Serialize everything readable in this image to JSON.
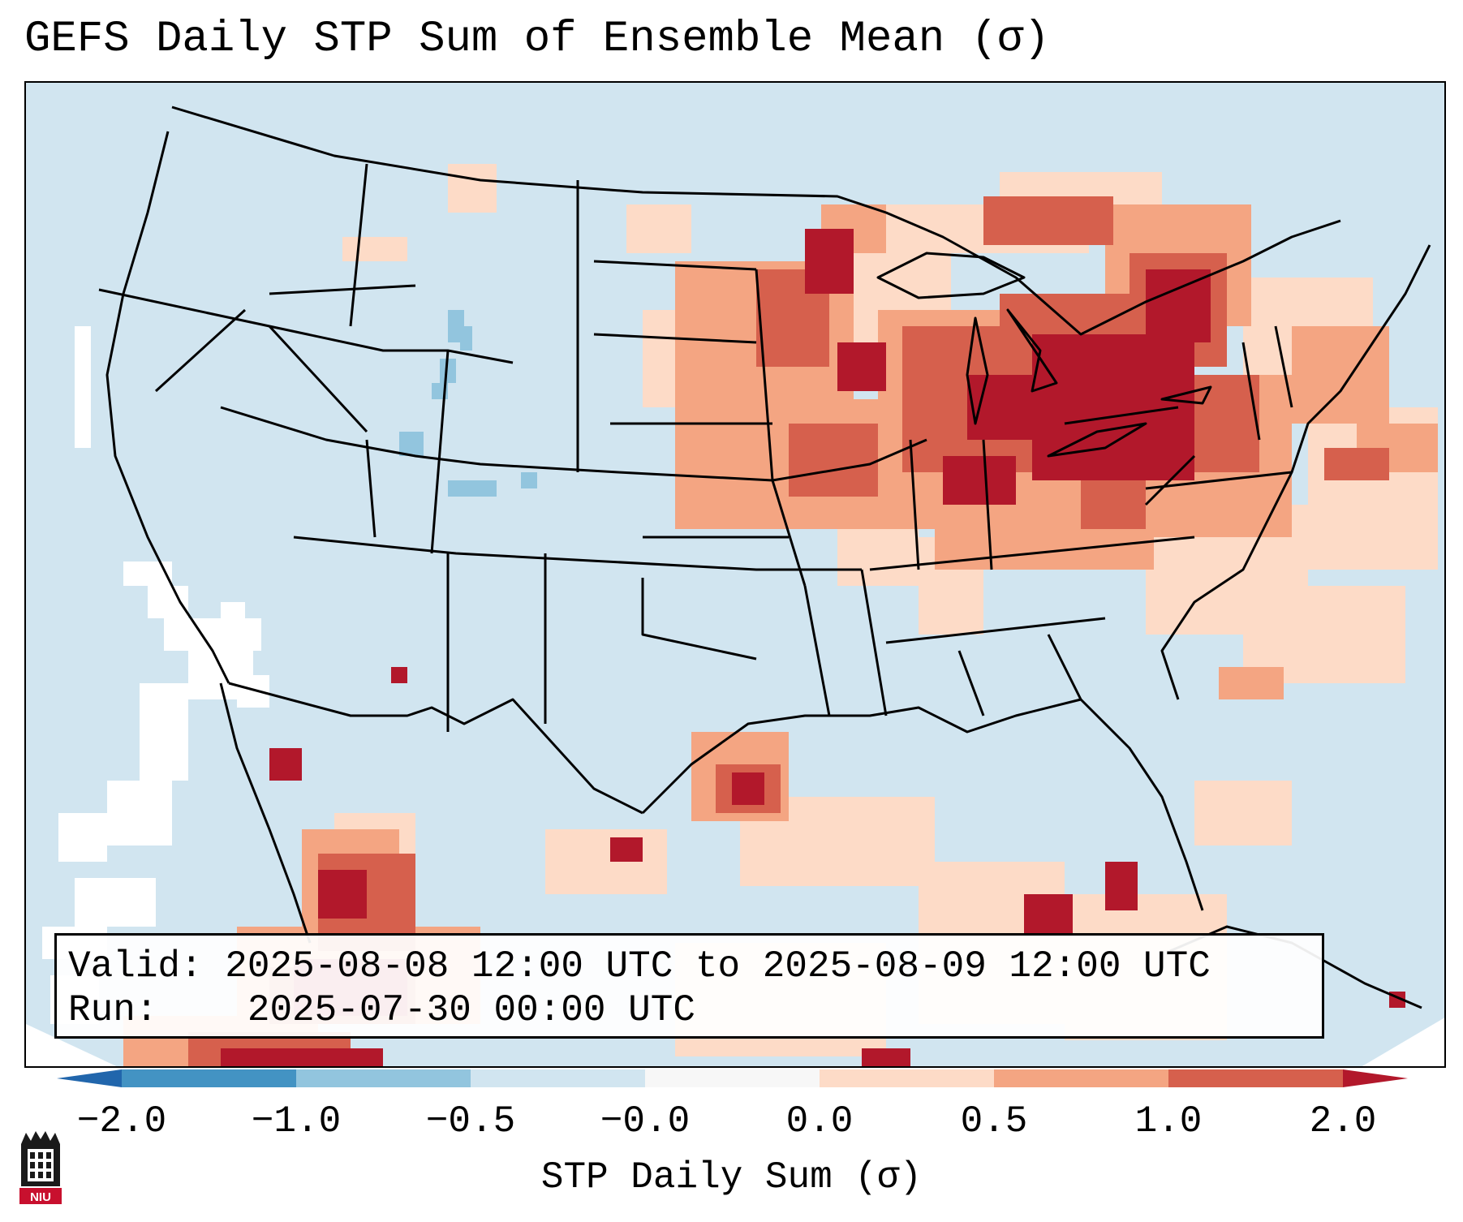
{
  "title": "GEFS Daily STP Sum of Ensemble Mean (σ)",
  "info": {
    "valid_label": "Valid:",
    "valid_value": "2025-08-08 12:00 UTC to 2025-08-09 12:00 UTC",
    "run_label": "Run:",
    "run_value": "2025-07-30 00:00 UTC"
  },
  "colorbar": {
    "label": "STP Daily Sum (σ)",
    "ticks": [
      "−2.0",
      "−1.0",
      "−0.5",
      "−0.0",
      "0.0",
      "0.5",
      "1.0",
      "2.0"
    ],
    "colors": [
      "#4393c3",
      "#92c5de",
      "#d1e5f0",
      "#f7f7f7",
      "#fddbc7",
      "#f4a582",
      "#d6604d",
      "#b2182b"
    ],
    "extend_low_color": "#2166ac",
    "extend_high_color": "#b2182b"
  },
  "logo": {
    "text": "NIU"
  },
  "map": {
    "background_color": "#d1e5f0",
    "region": "Continental United States with southern Canada, Mexico and the Gulf of Mexico"
  }
}
